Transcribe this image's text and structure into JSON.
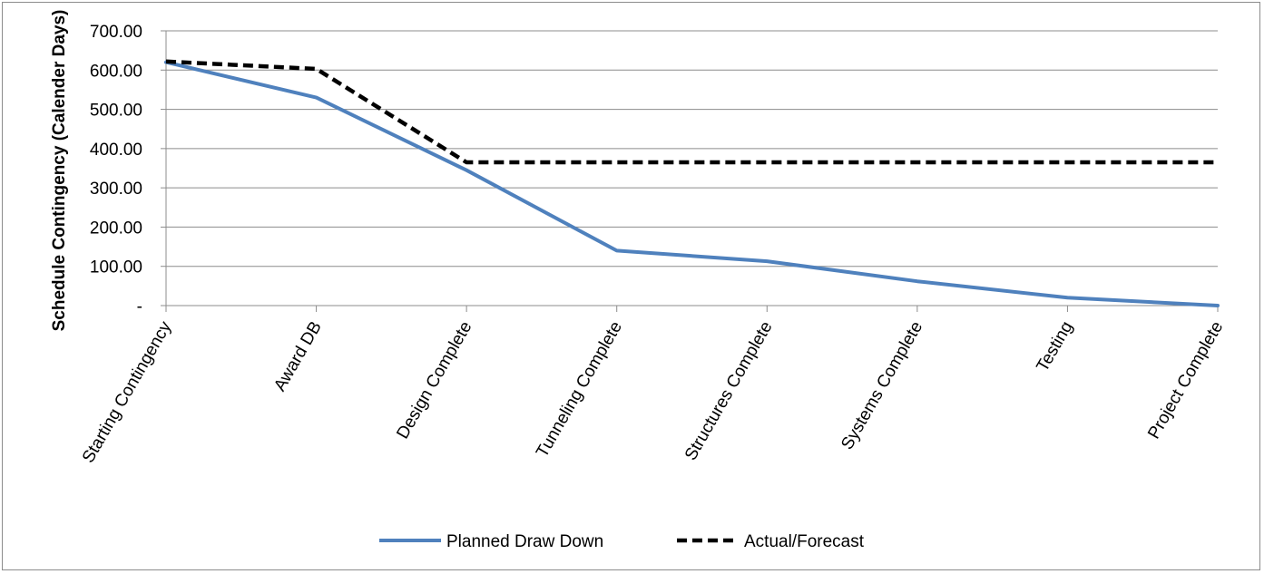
{
  "chart_data": {
    "type": "line",
    "title": "",
    "xlabel": "",
    "ylabel": "Schedule Contingency (Calender Days)",
    "categories": [
      "Starting Contingency",
      "Award DB",
      "Design Complete",
      "Tunneling Complete",
      "Structures Complete",
      "Systems Complete",
      "Testing",
      "Project Complete"
    ],
    "ylim": [
      0,
      700
    ],
    "yticks": [
      {
        "value": 0,
        "label": "-"
      },
      {
        "value": 100,
        "label": "100.00"
      },
      {
        "value": 200,
        "label": "200.00"
      },
      {
        "value": 300,
        "label": "300.00"
      },
      {
        "value": 400,
        "label": "400.00"
      },
      {
        "value": 500,
        "label": "500.00"
      },
      {
        "value": 600,
        "label": "600.00"
      },
      {
        "value": 700,
        "label": "700.00"
      }
    ],
    "grid": true,
    "legend_position": "bottom",
    "series": [
      {
        "name": "Planned Draw Down",
        "color": "#4f81bd",
        "style": "solid",
        "values": [
          620,
          530,
          345,
          140,
          113,
          62,
          20,
          0
        ]
      },
      {
        "name": "Actual/Forecast",
        "color": "#000000",
        "style": "dashed",
        "values": [
          622,
          603,
          365,
          365,
          365,
          365,
          365,
          365
        ]
      }
    ]
  }
}
